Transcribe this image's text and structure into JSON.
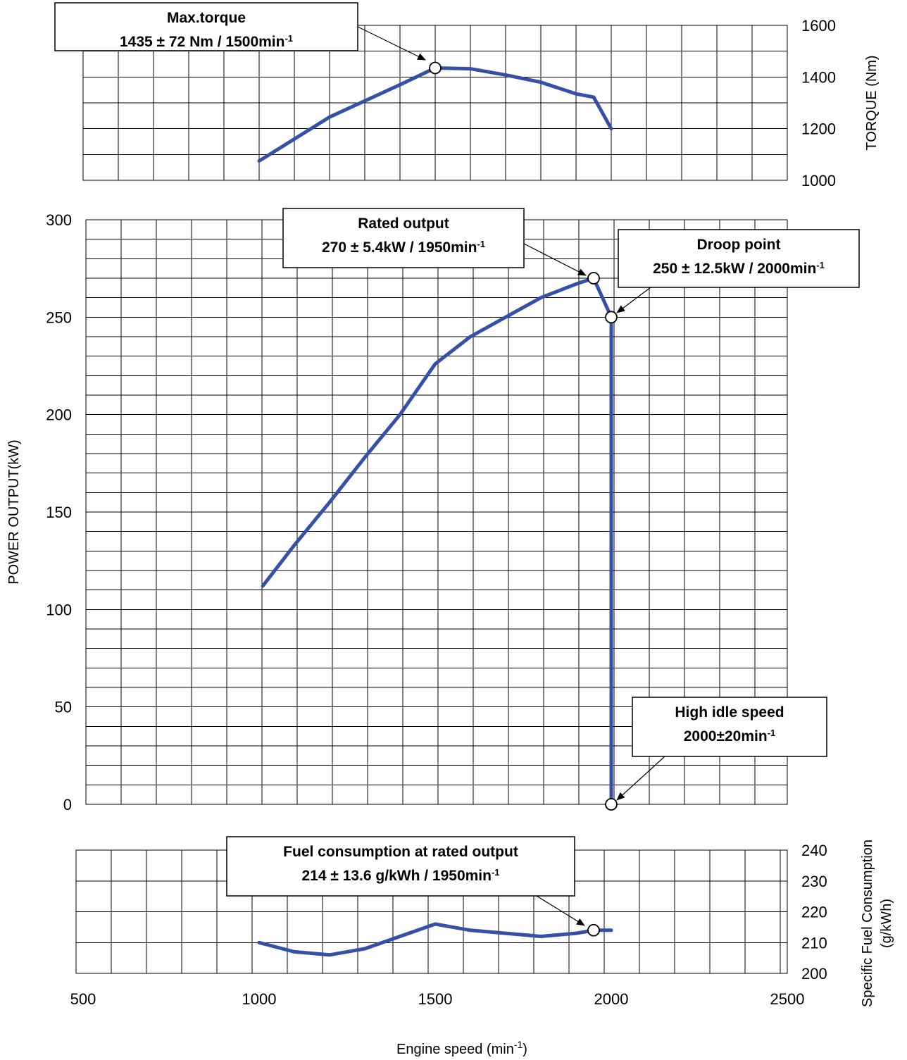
{
  "chart_data": [
    {
      "id": "torque",
      "type": "line",
      "ylabel": "TORQUE (Nm)",
      "ylim": [
        1000,
        1600
      ],
      "yticks": [
        1000,
        1200,
        1400,
        1600
      ],
      "xlim": [
        500,
        2500
      ],
      "series": [
        {
          "x": [
            1000,
            1200,
            1400,
            1500,
            1600,
            1700,
            1800,
            1900,
            1950,
            2000
          ],
          "y": [
            1075,
            1245,
            1370,
            1435,
            1432,
            1408,
            1380,
            1335,
            1322,
            1200
          ]
        }
      ],
      "markers": [
        {
          "x": 1500,
          "y": 1435
        }
      ],
      "annotations": [
        {
          "line1": "Max.torque",
          "line2": "1435 ± 72 Nm / 1500min",
          "sup": "-1"
        }
      ]
    },
    {
      "id": "power",
      "type": "line",
      "ylabel": "POWER OUTPUT(kW)",
      "ylim": [
        0,
        300
      ],
      "yticks": [
        0,
        50,
        100,
        150,
        200,
        250,
        300
      ],
      "xlim": [
        500,
        2500
      ],
      "series": [
        {
          "x": [
            1010,
            1100,
            1200,
            1300,
            1400,
            1500,
            1600,
            1700,
            1800,
            1900,
            1950,
            2000,
            2000
          ],
          "y": [
            112,
            133,
            155,
            178,
            200,
            226,
            240,
            250,
            260,
            267,
            270,
            250,
            0
          ]
        }
      ],
      "markers": [
        {
          "x": 1950,
          "y": 270
        },
        {
          "x": 2000,
          "y": 250
        },
        {
          "x": 2000,
          "y": 0
        }
      ],
      "annotations": [
        {
          "line1": "Rated output",
          "line2": "270 ± 5.4kW / 1950min",
          "sup": "-1"
        },
        {
          "line1": "Droop point",
          "line2": "250 ± 12.5kW / 2000min",
          "sup": "-1"
        },
        {
          "line1": "High idle speed",
          "line2": "2000±20min",
          "sup": "-1"
        }
      ]
    },
    {
      "id": "fuel",
      "type": "line",
      "ylabel": "Specific Fuel Consumption",
      "ylabel2": "(g/kWh)",
      "ylim": [
        200,
        240
      ],
      "yticks": [
        200,
        210,
        220,
        230,
        240
      ],
      "xlim": [
        500,
        2500
      ],
      "xticks": [
        500,
        1000,
        1500,
        2000,
        2500
      ],
      "xlabel": "Engine speed  (min",
      "xlabel_sup": "-1",
      "xlabel_close": ")",
      "series": [
        {
          "x": [
            1000,
            1100,
            1200,
            1300,
            1400,
            1500,
            1600,
            1700,
            1800,
            1900,
            1950,
            2000
          ],
          "y": [
            210,
            207,
            206,
            208,
            212,
            216,
            214,
            213,
            212,
            213,
            214,
            214
          ]
        }
      ],
      "markers": [
        {
          "x": 1950,
          "y": 214
        }
      ],
      "annotations": [
        {
          "line1": "Fuel consumption at rated output",
          "line2": "214 ± 13.6 g/kWh / 1950min",
          "sup": "-1"
        }
      ]
    }
  ],
  "colors": {
    "curve": "#3550a8",
    "grid": "#000000",
    "background": "#ffffff"
  }
}
